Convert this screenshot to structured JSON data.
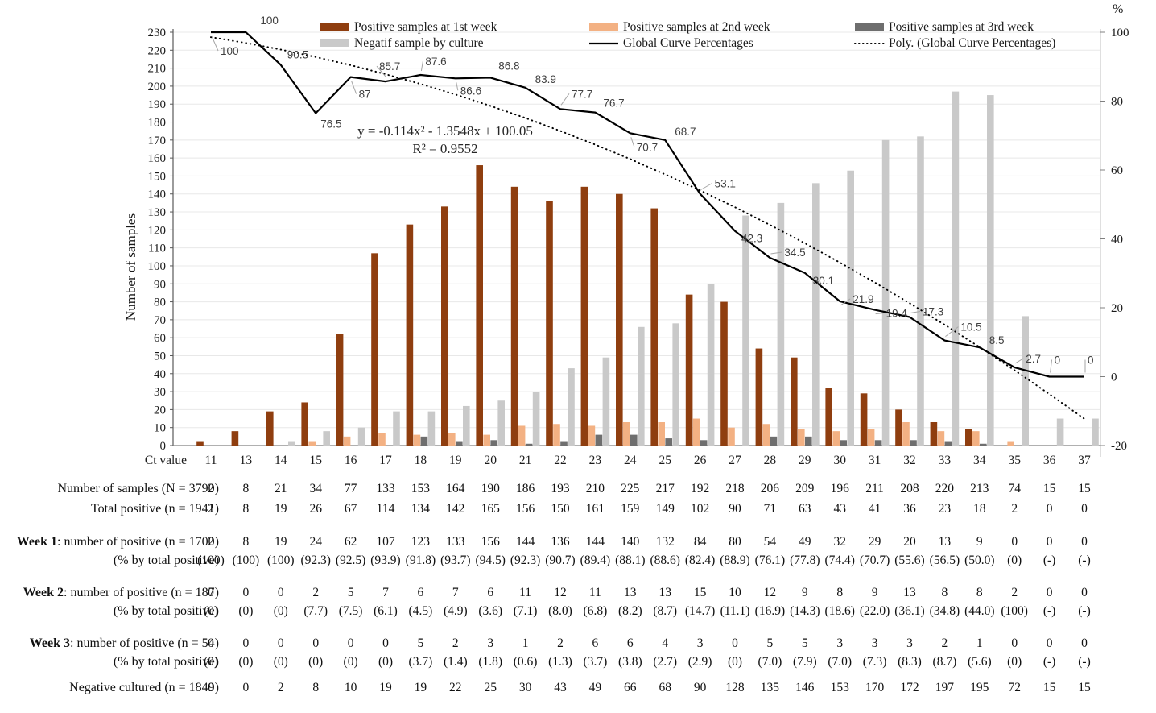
{
  "colors": {
    "week1": "#8f3e0f",
    "week2": "#f3b183",
    "week3": "#6e6e6e",
    "negative": "#c9c9c9",
    "line": "#000000",
    "grid": "#e8e8e8",
    "label_gray": "#3f3f3f"
  },
  "chart_data": {
    "type": "bar+line",
    "x_axis_label": "Ct value",
    "left_axis": {
      "label": "Number of samples",
      "min": 0,
      "max": 230,
      "step": 10
    },
    "right_axis": {
      "label": "%",
      "min": -20,
      "max": 100,
      "step": 20
    },
    "categories": [
      11,
      13,
      14,
      15,
      16,
      17,
      18,
      19,
      20,
      21,
      22,
      23,
      24,
      25,
      26,
      27,
      28,
      29,
      30,
      31,
      32,
      33,
      34,
      35,
      36,
      37
    ],
    "bar_series": [
      {
        "key": "week1",
        "name": "Positive samples at 1st week",
        "values": [
          2,
          8,
          19,
          24,
          62,
          107,
          123,
          133,
          156,
          144,
          136,
          144,
          140,
          132,
          84,
          80,
          54,
          49,
          32,
          29,
          20,
          13,
          9,
          0,
          0,
          0
        ]
      },
      {
        "key": "week2",
        "name": "Positive samples at 2nd week",
        "values": [
          0,
          0,
          0,
          2,
          5,
          7,
          6,
          7,
          6,
          11,
          12,
          11,
          13,
          13,
          15,
          10,
          12,
          9,
          8,
          9,
          13,
          8,
          8,
          2,
          0,
          0
        ]
      },
      {
        "key": "week3",
        "name": "Positive samples at 3rd week",
        "values": [
          0,
          0,
          0,
          0,
          0,
          0,
          5,
          2,
          3,
          1,
          2,
          6,
          6,
          4,
          3,
          0,
          5,
          5,
          3,
          3,
          3,
          2,
          1,
          0,
          0,
          0
        ]
      },
      {
        "key": "negative",
        "name": "Negatif sample by culture",
        "values": [
          0,
          0,
          2,
          8,
          10,
          19,
          19,
          22,
          25,
          30,
          43,
          49,
          66,
          68,
          90,
          128,
          135,
          146,
          153,
          170,
          172,
          197,
          195,
          72,
          15,
          15
        ]
      }
    ],
    "line_series": {
      "name": "Global Curve Percentages",
      "values": [
        100,
        100,
        90.5,
        76.5,
        87,
        85.7,
        87.6,
        86.6,
        86.8,
        83.9,
        77.7,
        76.7,
        70.7,
        68.7,
        53.1,
        42.3,
        34.5,
        30.1,
        21.9,
        19.4,
        17.3,
        10.5,
        8.5,
        2.7,
        0,
        0
      ],
      "labels": [
        "100",
        "100",
        "90.5",
        "76.5",
        "87",
        "85.7",
        "87.6",
        "86.6",
        "86.8",
        "83.9",
        "77.7",
        "76.7",
        "70.7",
        "68.7",
        "53.1",
        "42.3",
        "34.5",
        "30.1",
        "21.9",
        "19.4",
        "17.3",
        "10.5",
        "8.5",
        "2.7",
        "0",
        "0"
      ]
    },
    "trendline": {
      "name": "Poly. (Global Curve Percentages)",
      "equation_line1": "y = -0.114x² - 1.3548x + 100.05",
      "equation_line2": "R² = 0.9552",
      "coefficients": {
        "a": -0.114,
        "b": -1.3548,
        "c": 100.05
      }
    },
    "legend": [
      {
        "label": "Positive samples at 1st week",
        "swatch": "bar",
        "colorKey": "week1",
        "col": 0,
        "row": 0
      },
      {
        "label": "Positive samples at 2nd week",
        "swatch": "bar",
        "colorKey": "week2",
        "col": 1,
        "row": 0
      },
      {
        "label": "Positive samples at 3rd week",
        "swatch": "bar",
        "colorKey": "week3",
        "col": 2,
        "row": 0
      },
      {
        "label": "Negatif sample by culture",
        "swatch": "bar",
        "colorKey": "negative",
        "col": 0,
        "row": 1
      },
      {
        "label": "Global Curve Percentages",
        "swatch": "line",
        "colorKey": "line",
        "col": 1,
        "row": 1
      },
      {
        "label": "Poly. (Global Curve Percentages)",
        "swatch": "dotted",
        "colorKey": "line",
        "col": 2,
        "row": 1
      }
    ]
  },
  "table": {
    "rows": [
      {
        "bold": "",
        "label": "Number of samples (N = 3790)",
        "values": [
          "2",
          "8",
          "21",
          "34",
          "77",
          "133",
          "153",
          "164",
          "190",
          "186",
          "193",
          "210",
          "225",
          "217",
          "192",
          "218",
          "206",
          "209",
          "196",
          "211",
          "208",
          "220",
          "213",
          "74",
          "15",
          "15"
        ]
      },
      {
        "bold": "",
        "label": "Total positive (n = 1941)",
        "values": [
          "2",
          "8",
          "19",
          "26",
          "67",
          "114",
          "134",
          "142",
          "165",
          "156",
          "150",
          "161",
          "159",
          "149",
          "102",
          "90",
          "71",
          "63",
          "43",
          "41",
          "36",
          "23",
          "18",
          "2",
          "0",
          "0"
        ]
      },
      {
        "bold": "Week 1",
        "label": ": number of positive (n = 1700)",
        "values": [
          "2",
          "8",
          "19",
          "24",
          "62",
          "107",
          "123",
          "133",
          "156",
          "144",
          "136",
          "144",
          "140",
          "132",
          "84",
          "80",
          "54",
          "49",
          "32",
          "29",
          "20",
          "13",
          "9",
          "0",
          "0",
          "0"
        ]
      },
      {
        "bold": "",
        "label": "(% by total positive)",
        "values": [
          "(100)",
          "(100)",
          "(100)",
          "(92.3)",
          "(92.5)",
          "(93.9)",
          "(91.8)",
          "(93.7)",
          "(94.5)",
          "(92.3)",
          "(90.7)",
          "(89.4)",
          "(88.1)",
          "(88.6)",
          "(82.4)",
          "(88.9)",
          "(76.1)",
          "(77.8)",
          "(74.4)",
          "(70.7)",
          "(55.6)",
          "(56.5)",
          "(50.0)",
          "(0)",
          "(-)",
          "(-)"
        ]
      },
      {
        "bold": "Week 2",
        "label": ": number of positive (n = 187)",
        "values": [
          "0",
          "0",
          "0",
          "2",
          "5",
          "7",
          "6",
          "7",
          "6",
          "11",
          "12",
          "11",
          "13",
          "13",
          "15",
          "10",
          "12",
          "9",
          "8",
          "9",
          "13",
          "8",
          "8",
          "2",
          "0",
          "0"
        ]
      },
      {
        "bold": "",
        "label": "(% by total positive)",
        "values": [
          "(0)",
          "(0)",
          "(0)",
          "(7.7)",
          "(7.5)",
          "(6.1)",
          "(4.5)",
          "(4.9)",
          "(3.6)",
          "(7.1)",
          "(8.0)",
          "(6.8)",
          "(8.2)",
          "(8.7)",
          "(14.7)",
          "(11.1)",
          "(16.9)",
          "(14.3)",
          "(18.6)",
          "(22.0)",
          "(36.1)",
          "(34.8)",
          "(44.0)",
          "(100)",
          "(-)",
          "(-)"
        ]
      },
      {
        "bold": "Week 3",
        "label": ": number of positive (n = 54)",
        "values": [
          "0",
          "0",
          "0",
          "0",
          "0",
          "0",
          "5",
          "2",
          "3",
          "1",
          "2",
          "6",
          "6",
          "4",
          "3",
          "0",
          "5",
          "5",
          "3",
          "3",
          "3",
          "2",
          "1",
          "0",
          "0",
          "0"
        ]
      },
      {
        "bold": "",
        "label": "(% by total positive)",
        "values": [
          "(0)",
          "(0)",
          "(0)",
          "(0)",
          "(0)",
          "(0)",
          "(3.7)",
          "(1.4)",
          "(1.8)",
          "(0.6)",
          "(1.3)",
          "(3.7)",
          "(3.8)",
          "(2.7)",
          "(2.9)",
          "(0)",
          "(7.0)",
          "(7.9)",
          "(7.0)",
          "(7.3)",
          "(8.3)",
          "(8.7)",
          "(5.6)",
          "(0)",
          "(-)",
          "(-)"
        ]
      },
      {
        "bold": "",
        "label": "Negative cultured (n = 1849)",
        "values": [
          "0",
          "0",
          "2",
          "8",
          "10",
          "19",
          "19",
          "22",
          "25",
          "30",
          "43",
          "49",
          "66",
          "68",
          "90",
          "128",
          "135",
          "146",
          "153",
          "170",
          "172",
          "197",
          "195",
          "72",
          "15",
          "15"
        ]
      }
    ]
  }
}
